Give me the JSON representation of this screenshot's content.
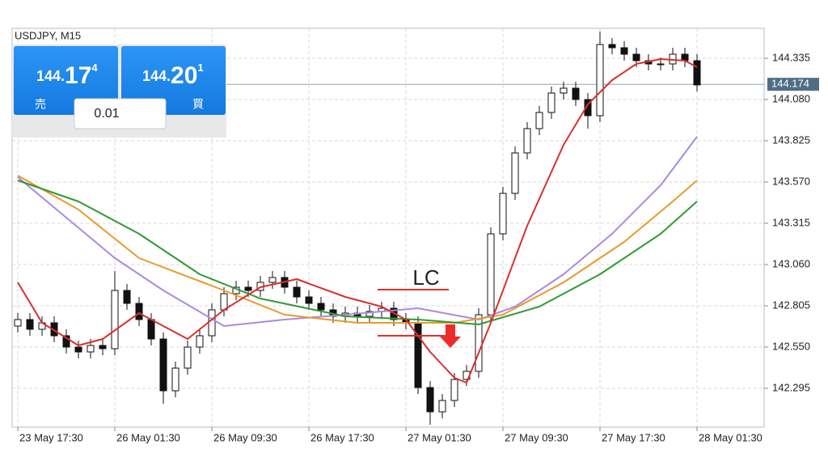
{
  "chart_data": {
    "type": "candlestick",
    "title": "USDJPY, M15",
    "xlim": [
      -0.467,
      61.533
    ],
    "xticks": [
      {
        "value": 0,
        "label": "23 May 17:30"
      },
      {
        "value": 8,
        "label": "26 May 01:30"
      },
      {
        "value": 16,
        "label": "26 May 09:30"
      },
      {
        "value": 24,
        "label": "26 May 17:30"
      },
      {
        "value": 32,
        "label": "27 May 01:30"
      },
      {
        "value": 40,
        "label": "27 May 09:30"
      },
      {
        "value": 48,
        "label": "27 May 17:30"
      },
      {
        "value": 56,
        "label": "28 May 01:30"
      }
    ],
    "ylim": [
      142.055,
      144.52
    ],
    "yticks": [
      142.295,
      {
        "value": 142.55,
        "label": "142.550"
      },
      142.805,
      {
        "value": 143.06,
        "label": "143.060"
      },
      143.315,
      {
        "value": 143.57,
        "label": "143.570"
      },
      143.825,
      {
        "value": 144.08,
        "label": "144.080"
      },
      144.335
    ],
    "grid": true,
    "current_price": 144.174,
    "candles": {
      "open": [
        142.68,
        142.72,
        142.66,
        142.7,
        142.62,
        142.55,
        142.52,
        142.56,
        142.54,
        142.9,
        142.82,
        142.72,
        142.6,
        142.28,
        142.42,
        142.55,
        142.62,
        142.78,
        142.88,
        142.92,
        142.9,
        142.95,
        142.98,
        142.92,
        142.86,
        142.82,
        142.78,
        142.74,
        142.76,
        142.74,
        142.77,
        142.79,
        142.72,
        142.7,
        142.3,
        142.15,
        142.22,
        142.35,
        142.4,
        142.75,
        143.25,
        143.5,
        143.75,
        143.9,
        144.0,
        144.12,
        144.15,
        144.08,
        143.98,
        144.42,
        144.4,
        144.36,
        144.32,
        144.3,
        144.3,
        144.36,
        144.32
      ],
      "high": [
        142.76,
        142.76,
        142.74,
        142.74,
        142.66,
        142.59,
        142.6,
        142.6,
        143.02,
        142.94,
        142.86,
        142.76,
        142.64,
        142.46,
        142.59,
        142.66,
        142.82,
        142.92,
        142.96,
        142.96,
        142.99,
        143.02,
        143.02,
        142.96,
        142.9,
        142.86,
        142.82,
        142.8,
        142.8,
        142.81,
        142.83,
        142.83,
        142.76,
        142.74,
        142.34,
        142.26,
        142.39,
        142.44,
        142.79,
        143.29,
        143.54,
        143.79,
        143.94,
        144.04,
        144.16,
        144.19,
        144.19,
        144.12,
        144.5,
        144.46,
        144.44,
        144.4,
        144.36,
        144.34,
        144.4,
        144.4,
        144.36
      ],
      "low": [
        142.64,
        142.62,
        142.62,
        142.58,
        142.51,
        142.48,
        142.48,
        142.5,
        142.5,
        142.78,
        142.68,
        142.56,
        142.2,
        142.24,
        142.38,
        142.51,
        142.58,
        142.74,
        142.84,
        142.86,
        142.86,
        142.91,
        142.88,
        142.82,
        142.78,
        142.74,
        142.7,
        142.7,
        142.7,
        142.7,
        142.73,
        142.68,
        142.66,
        142.26,
        142.07,
        142.11,
        142.18,
        142.31,
        142.36,
        142.71,
        143.21,
        143.46,
        143.71,
        143.86,
        143.96,
        144.08,
        144.04,
        143.9,
        143.94,
        144.36,
        144.32,
        144.28,
        144.26,
        144.26,
        144.26,
        144.28,
        144.13
      ],
      "close": [
        142.72,
        142.66,
        142.7,
        142.62,
        142.55,
        142.52,
        142.56,
        142.54,
        142.9,
        142.82,
        142.72,
        142.6,
        142.28,
        142.42,
        142.55,
        142.62,
        142.78,
        142.88,
        142.92,
        142.9,
        142.95,
        142.98,
        142.92,
        142.86,
        142.82,
        142.78,
        142.74,
        142.76,
        142.74,
        142.77,
        142.79,
        142.72,
        142.7,
        142.3,
        142.15,
        142.22,
        142.35,
        142.4,
        142.75,
        143.25,
        143.5,
        143.75,
        143.9,
        144.0,
        144.12,
        144.15,
        144.08,
        143.98,
        144.42,
        144.4,
        144.36,
        144.32,
        144.3,
        144.3,
        144.36,
        144.32,
        144.17
      ]
    },
    "series": [
      {
        "color": "#a98be0",
        "x": [
          0,
          4,
          8,
          12,
          17,
          22,
          27,
          33,
          38,
          41,
          45,
          49,
          53,
          56
        ],
        "values": [
          143.6,
          143.35,
          143.1,
          142.9,
          142.68,
          142.72,
          142.75,
          142.79,
          142.72,
          142.8,
          143.0,
          143.25,
          143.55,
          143.85
        ]
      },
      {
        "color": "#e89a2c",
        "x": [
          0,
          5,
          10,
          17,
          22,
          28,
          36,
          40,
          45,
          50,
          54,
          56
        ],
        "values": [
          143.61,
          143.4,
          143.1,
          142.9,
          142.75,
          142.7,
          142.7,
          142.75,
          142.95,
          143.2,
          143.45,
          143.58
        ]
      },
      {
        "color": "#2f9a35",
        "x": [
          0,
          5,
          10,
          15,
          20,
          27,
          33,
          38,
          43,
          48,
          53,
          56
        ],
        "values": [
          143.58,
          143.45,
          143.25,
          143.0,
          142.85,
          142.74,
          142.72,
          142.69,
          142.8,
          143.0,
          143.25,
          143.45
        ]
      },
      {
        "color": "#d9302c",
        "x": [
          0,
          2,
          5,
          7,
          10,
          12,
          14,
          17,
          20,
          23,
          27,
          30,
          32,
          34,
          36,
          37,
          39,
          42,
          45,
          47,
          49,
          51,
          53,
          55,
          56
        ],
        "values": [
          142.95,
          142.7,
          142.56,
          142.6,
          142.76,
          142.68,
          142.6,
          142.78,
          142.92,
          142.97,
          142.86,
          142.8,
          142.72,
          142.52,
          142.36,
          142.33,
          142.7,
          143.3,
          143.8,
          144.05,
          144.2,
          144.3,
          144.33,
          144.32,
          144.28
        ]
      }
    ],
    "annotation": "LC",
    "trade_panel": {
      "sell": {
        "prefix": "144.",
        "big": "17",
        "small": "4",
        "label": "売"
      },
      "buy": {
        "prefix": "144.",
        "big": "20",
        "small": "1",
        "label": "買"
      },
      "lot": "0.01"
    }
  }
}
